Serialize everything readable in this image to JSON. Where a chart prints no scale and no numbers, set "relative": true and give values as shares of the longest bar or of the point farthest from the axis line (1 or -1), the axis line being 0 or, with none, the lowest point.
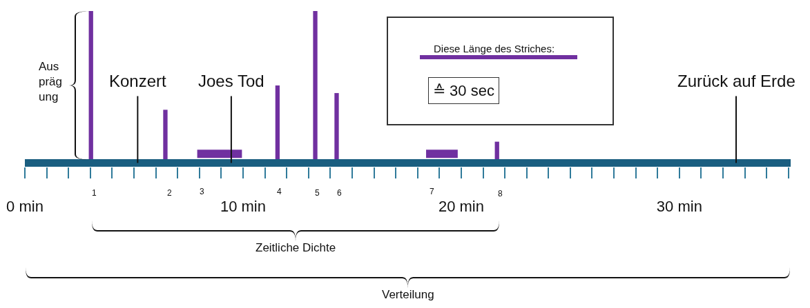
{
  "chart_data": {
    "type": "bar",
    "relative": true,
    "xlim": [
      0,
      35.1
    ],
    "xticks": [
      {
        "value": 0,
        "label": "0 min"
      },
      {
        "value": 1,
        "label": null
      },
      {
        "value": 2,
        "label": null
      },
      {
        "value": 3,
        "label": null
      },
      {
        "value": 4,
        "label": null
      },
      {
        "value": 5,
        "label": null
      },
      {
        "value": 6,
        "label": null
      },
      {
        "value": 7,
        "label": null
      },
      {
        "value": 8,
        "label": null
      },
      {
        "value": 9,
        "label": null
      },
      {
        "value": 10,
        "label": "10 min"
      },
      {
        "value": 11,
        "label": null
      },
      {
        "value": 12,
        "label": null
      },
      {
        "value": 13,
        "label": null
      },
      {
        "value": 14,
        "label": null
      },
      {
        "value": 15,
        "label": null
      },
      {
        "value": 16,
        "label": null
      },
      {
        "value": 17,
        "label": null
      },
      {
        "value": 18,
        "label": null
      },
      {
        "value": 19,
        "label": null
      },
      {
        "value": 20,
        "label": "20 min"
      },
      {
        "value": 21,
        "label": null
      },
      {
        "value": 22,
        "label": null
      },
      {
        "value": 23,
        "label": null
      },
      {
        "value": 24,
        "label": null
      },
      {
        "value": 25,
        "label": null
      },
      {
        "value": 26,
        "label": null
      },
      {
        "value": 27,
        "label": null
      },
      {
        "value": 28,
        "label": null
      },
      {
        "value": 29,
        "label": null
      },
      {
        "value": 30,
        "label": "30 min"
      },
      {
        "value": 31,
        "label": null
      },
      {
        "value": 32,
        "label": null
      },
      {
        "value": 33,
        "label": null
      },
      {
        "value": 34,
        "label": null
      },
      {
        "value": 35,
        "label": null
      }
    ],
    "series": [
      {
        "color": "#7030a0",
        "x": [
          3.03,
          6.44,
          11.58,
          13.31,
          14.29,
          21.64
        ],
        "values": [
          1,
          0.35,
          0.51,
          1,
          0.46,
          0.14
        ]
      },
      {
        "type": "line",
        "color": "#7030a0",
        "x": [
          7.9,
          9.95
        ],
        "values": [
          0.06,
          0.06
        ]
      },
      {
        "type": "line",
        "color": "#7030a0",
        "x": [
          18.39,
          19.84
        ],
        "values": [
          0.06,
          0.06
        ]
      }
    ],
    "ref_lines": [
      {
        "axis": "x",
        "value": 5.17,
        "label": "Konzert"
      },
      {
        "axis": "x",
        "value": 9.46,
        "label": "Joes Tod"
      },
      {
        "axis": "x",
        "value": 32.6,
        "label": "Zurück auf Erde"
      }
    ],
    "annotations": [
      "1",
      "2",
      "3",
      "4",
      "5",
      "6",
      "7",
      "8",
      "Aus\npräg\nung",
      "Diese Länge des Striches:",
      "≙ 30 sec",
      "Zeitliche Dichte",
      "Verteilung"
    ]
  }
}
